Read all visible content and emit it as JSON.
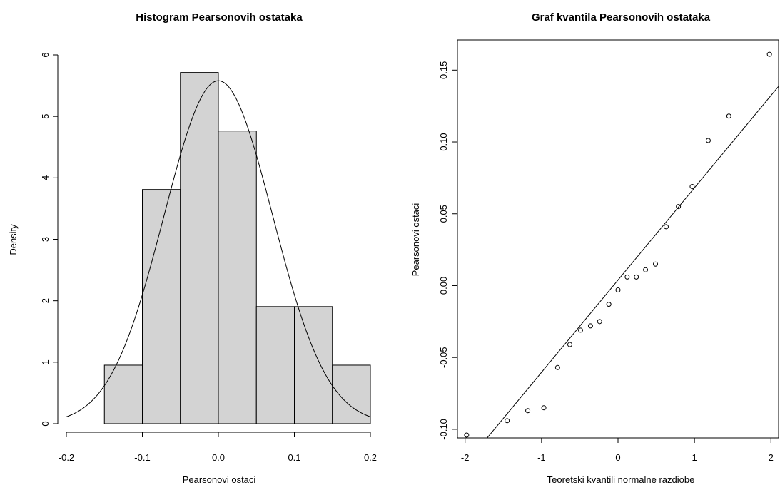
{
  "chart_data": [
    {
      "type": "bar",
      "title": "Histogram Pearsonovih ostataka",
      "xlabel": "Pearsonovi ostaci",
      "ylabel": "Density",
      "xlim": [
        -0.2,
        0.2
      ],
      "ylim": [
        0,
        6
      ],
      "x_ticks": [
        "-0.2",
        "-0.1",
        "0.0",
        "0.1",
        "0.2"
      ],
      "y_ticks": [
        "0",
        "1",
        "2",
        "3",
        "4",
        "5",
        "6"
      ],
      "bins": [
        {
          "x0": -0.15,
          "x1": -0.1,
          "density": 0.952
        },
        {
          "x0": -0.1,
          "x1": -0.05,
          "density": 3.81
        },
        {
          "x0": -0.05,
          "x1": 0.0,
          "density": 5.714
        },
        {
          "x0": 0.0,
          "x1": 0.05,
          "density": 4.762
        },
        {
          "x0": 0.05,
          "x1": 0.1,
          "density": 1.905
        },
        {
          "x0": 0.1,
          "x1": 0.15,
          "density": 1.905
        },
        {
          "x0": 0.15,
          "x1": 0.2,
          "density": 0.952
        }
      ],
      "normal_curve": {
        "mean": 0.0,
        "sd": 0.0715,
        "x_range": [
          -0.2,
          0.2
        ]
      },
      "colors": {
        "bar_fill": "#d3d3d3",
        "bar_stroke": "#000000",
        "curve": "#000000"
      }
    },
    {
      "type": "scatter",
      "title": "Graf kvantila Pearsonovih ostataka",
      "xlabel": "Teoretski kvantili normalne razdiobe",
      "ylabel": "Pearsonovi ostaci",
      "xlim": [
        -2.1,
        2.1
      ],
      "ylim": [
        -0.106,
        0.171
      ],
      "x_ticks": [
        "-2",
        "-1",
        "0",
        "1",
        "2"
      ],
      "y_ticks": [
        "-0.10",
        "-0.05",
        "0.00",
        "0.05",
        "0.10",
        "0.15"
      ],
      "points": [
        {
          "x": -1.98,
          "y": -0.104
        },
        {
          "x": -1.45,
          "y": -0.094
        },
        {
          "x": -1.18,
          "y": -0.087
        },
        {
          "x": -0.97,
          "y": -0.085
        },
        {
          "x": -0.79,
          "y": -0.057
        },
        {
          "x": -0.63,
          "y": -0.041
        },
        {
          "x": -0.49,
          "y": -0.031
        },
        {
          "x": -0.36,
          "y": -0.028
        },
        {
          "x": -0.24,
          "y": -0.025
        },
        {
          "x": -0.12,
          "y": -0.013
        },
        {
          "x": 0.0,
          "y": -0.003
        },
        {
          "x": 0.12,
          "y": 0.006
        },
        {
          "x": 0.24,
          "y": 0.006
        },
        {
          "x": 0.36,
          "y": 0.011
        },
        {
          "x": 0.49,
          "y": 0.015
        },
        {
          "x": 0.63,
          "y": 0.041
        },
        {
          "x": 0.79,
          "y": 0.055
        },
        {
          "x": 0.97,
          "y": 0.069
        },
        {
          "x": 1.18,
          "y": 0.101
        },
        {
          "x": 1.45,
          "y": 0.118
        },
        {
          "x": 1.98,
          "y": 0.161
        }
      ],
      "reference_line": {
        "intercept": 0.0039,
        "slope": 0.0642
      },
      "colors": {
        "point_stroke": "#000000",
        "line": "#000000"
      }
    }
  ]
}
